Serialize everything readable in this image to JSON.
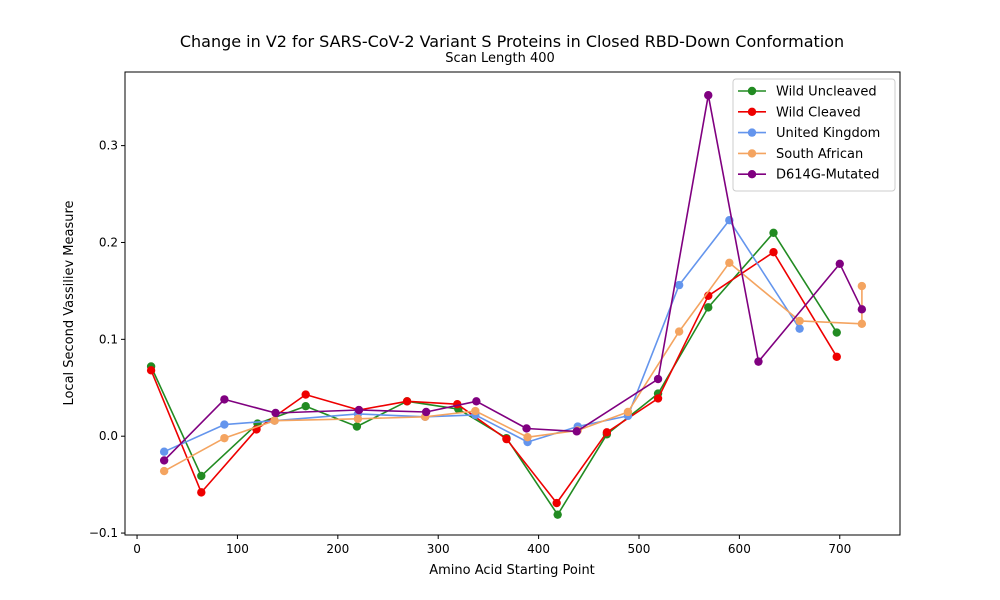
{
  "chart_data": {
    "type": "line",
    "title": "Change in V2 for SARS-CoV-2 Variant S Proteins in Closed RBD-Down Conformation",
    "subtitle": "Scan Length 400",
    "xlabel": "Amino Acid Starting Point",
    "ylabel": "Local Second Vassiliev Measure",
    "xlim": [
      -12,
      760
    ],
    "ylim": [
      -0.102,
      0.376
    ],
    "xticks": [
      0,
      100,
      200,
      300,
      400,
      500,
      600,
      700
    ],
    "yticks": [
      -0.1,
      0.0,
      0.1,
      0.2,
      0.3
    ],
    "ytick_labels": [
      "−0.1",
      "0.0",
      "0.1",
      "0.2",
      "0.3"
    ],
    "grid": false,
    "legend_position": "top-right",
    "series": [
      {
        "name": "Wild Uncleaved",
        "color": "#228b22",
        "x": [
          14,
          64,
          120,
          168,
          219,
          269,
          320,
          368,
          419,
          468,
          519,
          569,
          634,
          697
        ],
        "y": [
          0.072,
          -0.041,
          0.013,
          0.031,
          0.01,
          0.036,
          0.028,
          -0.002,
          -0.081,
          0.002,
          0.044,
          0.133,
          0.21,
          0.107
        ]
      },
      {
        "name": "Wild Cleaved",
        "color": "#ee0000",
        "x": [
          14,
          64,
          119,
          168,
          221,
          269,
          319,
          368,
          418,
          468,
          519,
          569,
          634,
          697
        ],
        "y": [
          0.068,
          -0.058,
          0.007,
          0.043,
          0.027,
          0.036,
          0.033,
          -0.003,
          -0.069,
          0.004,
          0.039,
          0.145,
          0.19,
          0.082
        ]
      },
      {
        "name": "United Kingdom",
        "color": "#6495ed",
        "x": [
          27,
          87,
          137,
          220,
          287,
          337,
          389,
          439,
          489,
          540,
          590,
          660
        ],
        "y": [
          -0.016,
          0.012,
          0.016,
          0.023,
          0.02,
          0.022,
          -0.006,
          0.01,
          0.021,
          0.156,
          0.223,
          0.111
        ]
      },
      {
        "name": "South African",
        "color": "#f4a460",
        "x": [
          27,
          87,
          137,
          220,
          287,
          337,
          389,
          439,
          489,
          540,
          590,
          660,
          722,
          722
        ],
        "y": [
          -0.036,
          -0.002,
          0.016,
          0.018,
          0.02,
          0.026,
          -0.001,
          0.006,
          0.025,
          0.108,
          0.179,
          0.119,
          0.116,
          0.155
        ]
      },
      {
        "name": "D614G-Mutated",
        "color": "#800080",
        "x": [
          27,
          87,
          138,
          221,
          288,
          338,
          388,
          438,
          519,
          569,
          619,
          700,
          722
        ],
        "y": [
          -0.025,
          0.038,
          0.024,
          0.027,
          0.025,
          0.036,
          0.008,
          0.005,
          0.059,
          0.352,
          0.077,
          0.178,
          0.131
        ]
      }
    ]
  }
}
